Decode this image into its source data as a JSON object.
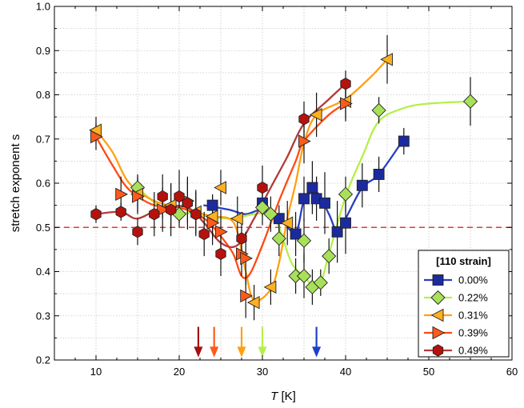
{
  "chart_data": {
    "type": "scatter",
    "xlabel": {
      "italic": "T",
      "rest": " [K]"
    },
    "ylabel": "stretch exponent s",
    "xlim": [
      5,
      60
    ],
    "ylim": [
      0.2,
      1.0
    ],
    "x_ticks": [
      10,
      20,
      30,
      40,
      50,
      60
    ],
    "y_ticks": [
      0.2,
      0.3,
      0.4,
      0.5,
      0.6,
      0.7,
      0.8,
      0.9,
      1.0
    ],
    "y_tick_labels": [
      "0.2",
      "0.3",
      "0.4",
      "0.5",
      "0.6",
      "0.7",
      "0.8",
      "0.9",
      "1.0"
    ],
    "grid": "dotted",
    "reference_line": {
      "y": 0.5,
      "color": "#e53935",
      "style": "dashed"
    },
    "legend": {
      "title": "[110 strain]",
      "position": "bottom-right"
    },
    "arrows": [
      {
        "x": 22.3,
        "color": "#a31010"
      },
      {
        "x": 24.2,
        "color": "#ff5a1a"
      },
      {
        "x": 27.5,
        "color": "#ffa010"
      },
      {
        "x": 30.0,
        "color": "#b4f04a"
      },
      {
        "x": 36.5,
        "color": "#1e40c8"
      }
    ],
    "series": [
      {
        "name": "0.00%",
        "marker": "square",
        "color": "#1b2a9e",
        "line_color": "#2a3fc0",
        "points": [
          [
            24,
            0.55
          ],
          [
            30,
            0.555
          ],
          [
            32,
            0.52
          ],
          [
            34,
            0.485
          ],
          [
            35,
            0.565
          ],
          [
            36,
            0.59
          ],
          [
            36.5,
            0.565
          ],
          [
            37.5,
            0.555
          ],
          [
            39,
            0.49
          ],
          [
            40,
            0.51
          ],
          [
            42,
            0.595
          ],
          [
            44,
            0.62
          ],
          [
            47,
            0.695
          ]
        ],
        "errors": [
          0.02,
          0.03,
          0.03,
          0.05,
          0.05,
          0.06,
          0.05,
          0.07,
          0.07,
          0.07,
          0.05,
          0.04,
          0.03
        ],
        "curve": [
          [
            23,
            0.55
          ],
          [
            26,
            0.54
          ],
          [
            28,
            0.53
          ],
          [
            30,
            0.54
          ],
          [
            32,
            0.52
          ],
          [
            34,
            0.49
          ],
          [
            35,
            0.56
          ],
          [
            36.5,
            0.58
          ],
          [
            38,
            0.53
          ],
          [
            39,
            0.49
          ],
          [
            40,
            0.52
          ],
          [
            42,
            0.59
          ],
          [
            44,
            0.62
          ],
          [
            47,
            0.7
          ]
        ]
      },
      {
        "name": "0.22%",
        "marker": "diamond",
        "color": "#a8e05a",
        "line_color": "#b4f04a",
        "points": [
          [
            15,
            0.59
          ],
          [
            20,
            0.53
          ],
          [
            30,
            0.545
          ],
          [
            31,
            0.53
          ],
          [
            32,
            0.475
          ],
          [
            34,
            0.39
          ],
          [
            35,
            0.39
          ],
          [
            35,
            0.47
          ],
          [
            36,
            0.365
          ],
          [
            37,
            0.375
          ],
          [
            38,
            0.435
          ],
          [
            40,
            0.575
          ],
          [
            44,
            0.765
          ],
          [
            55,
            0.785
          ]
        ],
        "errors": [
          0.03,
          0.03,
          0.04,
          0.04,
          0.04,
          0.04,
          0.05,
          0.05,
          0.04,
          0.03,
          0.04,
          0.04,
          0.03,
          0.055
        ],
        "curve": [
          [
            15,
            0.59
          ],
          [
            18,
            0.545
          ],
          [
            22,
            0.53
          ],
          [
            26,
            0.52
          ],
          [
            29,
            0.53
          ],
          [
            31,
            0.53
          ],
          [
            32,
            0.5
          ],
          [
            33.5,
            0.42
          ],
          [
            35,
            0.39
          ],
          [
            36,
            0.37
          ],
          [
            37,
            0.375
          ],
          [
            38,
            0.44
          ],
          [
            40,
            0.57
          ],
          [
            42,
            0.66
          ],
          [
            44,
            0.74
          ],
          [
            47,
            0.77
          ],
          [
            50,
            0.78
          ],
          [
            55,
            0.785
          ]
        ]
      },
      {
        "name": "0.31%",
        "marker": "triangle-left",
        "color": "#ffb020",
        "line_color": "#ffa010",
        "points": [
          [
            10,
            0.72
          ],
          [
            15,
            0.575
          ],
          [
            19,
            0.55
          ],
          [
            22,
            0.535
          ],
          [
            24,
            0.525
          ],
          [
            25,
            0.59
          ],
          [
            27,
            0.52
          ],
          [
            29,
            0.33
          ],
          [
            31,
            0.365
          ],
          [
            33,
            0.51
          ],
          [
            36.5,
            0.755
          ],
          [
            40,
            0.785
          ],
          [
            45,
            0.88
          ]
        ],
        "errors": [
          0.03,
          0.04,
          0.05,
          0.05,
          0.05,
          0.04,
          0.05,
          0.04,
          0.04,
          0.05,
          0.05,
          0.04,
          0.055
        ],
        "curve": [
          [
            10,
            0.72
          ],
          [
            12,
            0.67
          ],
          [
            14,
            0.6
          ],
          [
            17,
            0.56
          ],
          [
            21,
            0.54
          ],
          [
            24,
            0.525
          ],
          [
            26,
            0.52
          ],
          [
            27,
            0.49
          ],
          [
            28,
            0.4
          ],
          [
            29,
            0.335
          ],
          [
            31,
            0.36
          ],
          [
            32,
            0.42
          ],
          [
            33,
            0.52
          ],
          [
            34,
            0.6
          ],
          [
            35,
            0.69
          ],
          [
            36.5,
            0.755
          ],
          [
            40,
            0.79
          ],
          [
            43,
            0.84
          ],
          [
            45,
            0.88
          ]
        ]
      },
      {
        "name": "0.39%",
        "marker": "triangle-right",
        "color": "#ff5a1a",
        "line_color": "#ff4a10",
        "points": [
          [
            10,
            0.705
          ],
          [
            13,
            0.575
          ],
          [
            15,
            0.57
          ],
          [
            18,
            0.54
          ],
          [
            21,
            0.56
          ],
          [
            24,
            0.51
          ],
          [
            25,
            0.49
          ],
          [
            27.5,
            0.44
          ],
          [
            28,
            0.43
          ],
          [
            28,
            0.345
          ],
          [
            35,
            0.695
          ],
          [
            40,
            0.78
          ]
        ],
        "errors": [
          0.03,
          0.04,
          0.04,
          0.05,
          0.05,
          0.05,
          0.05,
          0.05,
          0.06,
          0.05,
          0.05,
          0.04
        ],
        "curve": [
          [
            10,
            0.705
          ],
          [
            12,
            0.64
          ],
          [
            14,
            0.585
          ],
          [
            17,
            0.55
          ],
          [
            20,
            0.545
          ],
          [
            23,
            0.52
          ],
          [
            25,
            0.48
          ],
          [
            26.5,
            0.44
          ],
          [
            27.5,
            0.39
          ],
          [
            28.5,
            0.395
          ],
          [
            30,
            0.46
          ],
          [
            32,
            0.56
          ],
          [
            34,
            0.65
          ],
          [
            35,
            0.695
          ],
          [
            38,
            0.755
          ],
          [
            40,
            0.78
          ]
        ]
      },
      {
        "name": "0.49%",
        "marker": "hexagon",
        "color": "#b5120e",
        "line_color": "#b03a3a",
        "points": [
          [
            10,
            0.53
          ],
          [
            13,
            0.535
          ],
          [
            15,
            0.49
          ],
          [
            17,
            0.53
          ],
          [
            18,
            0.57
          ],
          [
            19,
            0.54
          ],
          [
            20,
            0.57
          ],
          [
            21,
            0.555
          ],
          [
            22,
            0.53
          ],
          [
            23,
            0.485
          ],
          [
            25,
            0.44
          ],
          [
            27.5,
            0.475
          ],
          [
            30,
            0.59
          ],
          [
            35,
            0.745
          ],
          [
            40,
            0.825
          ]
        ],
        "errors": [
          0.02,
          0.02,
          0.03,
          0.05,
          0.05,
          0.06,
          0.06,
          0.06,
          0.05,
          0.05,
          0.05,
          0.06,
          0.05,
          0.04,
          0.03
        ],
        "curve": [
          [
            10,
            0.53
          ],
          [
            13,
            0.535
          ],
          [
            15,
            0.52
          ],
          [
            18,
            0.545
          ],
          [
            21,
            0.545
          ],
          [
            23,
            0.51
          ],
          [
            25,
            0.465
          ],
          [
            27,
            0.46
          ],
          [
            29,
            0.52
          ],
          [
            31,
            0.59
          ],
          [
            33,
            0.66
          ],
          [
            35,
            0.735
          ],
          [
            38,
            0.79
          ],
          [
            40,
            0.825
          ]
        ]
      }
    ]
  }
}
